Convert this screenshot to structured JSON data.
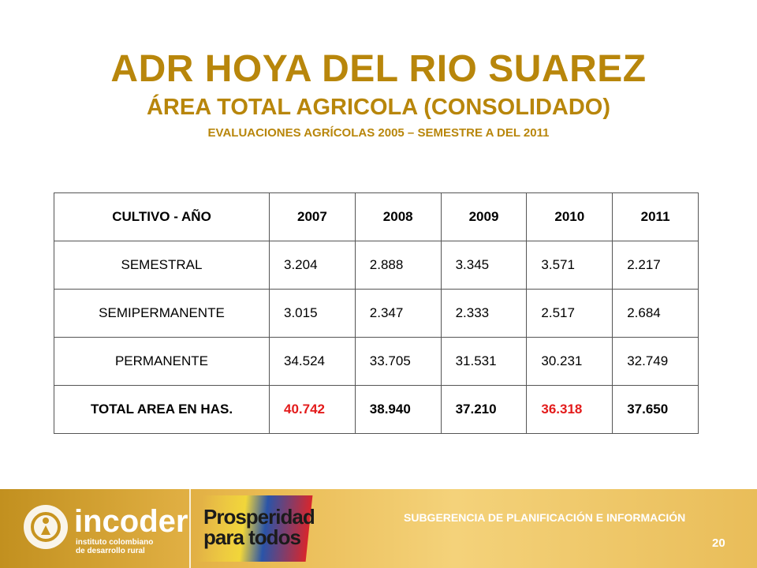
{
  "title": "ADR HOYA DEL RIO SUAREZ",
  "subtitle": "ÁREA TOTAL AGRICOLA (CONSOLIDADO)",
  "subsubtitle": "EVALUACIONES AGRÍCOLAS 2005 – SEMESTRE A DEL 2011",
  "table": {
    "header": [
      "CULTIVO  - AÑO",
      "2007",
      "2008",
      "2009",
      "2010",
      "2011"
    ],
    "rows": [
      [
        "SEMESTRAL",
        "3.204",
        "2.888",
        "3.345",
        "3.571",
        "2.217"
      ],
      [
        "SEMIPERMANENTE",
        "3.015",
        "2.347",
        "2.333",
        "2.517",
        "2.684"
      ],
      [
        "PERMANENTE",
        "34.524",
        "33.705",
        "31.531",
        "30.231",
        "32.749"
      ]
    ],
    "total": [
      "TOTAL AREA EN HAS.",
      "40.742",
      "38.940",
      "37.210",
      "36.318",
      "37.650"
    ],
    "highlight_color": "#e31b1b"
  },
  "footer": {
    "logo1_name": "incoder",
    "logo1_sub": "instituto colombiano\nde desarrollo rural",
    "logo2_text": "Prosperidad\npara todos",
    "department": "SUBGERENCIA DE PLANIFICACIÓN E INFORMACIÓN",
    "page_number": "20"
  }
}
